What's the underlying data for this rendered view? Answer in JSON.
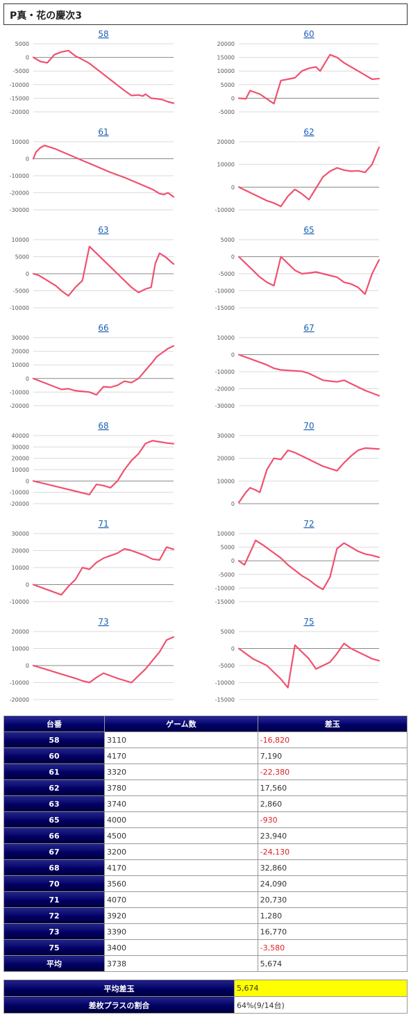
{
  "title": "P真・花の慶次3",
  "line_color": "#f0506e",
  "chart_data": [
    {
      "type": "line",
      "title": "58",
      "yticks": [
        5000,
        0,
        -5000,
        -10000,
        -15000,
        -20000
      ],
      "ylim": [
        -20000,
        5000
      ],
      "x": [
        0,
        5,
        10,
        15,
        20,
        25,
        30,
        35,
        40,
        45,
        50,
        55,
        60,
        65,
        70,
        75,
        78,
        80,
        84,
        88,
        92,
        96,
        100
      ],
      "y": [
        0,
        -1500,
        -2000,
        1000,
        2000,
        2500,
        500,
        -800,
        -2200,
        -4200,
        -6200,
        -8200,
        -10200,
        -12200,
        -14000,
        -13800,
        -14200,
        -13500,
        -15000,
        -15200,
        -15500,
        -16300,
        -16820
      ]
    },
    {
      "type": "line",
      "title": "60",
      "yticks": [
        20000,
        15000,
        10000,
        5000,
        0,
        -5000
      ],
      "ylim": [
        -5000,
        20000
      ],
      "x": [
        0,
        5,
        8,
        15,
        25,
        30,
        35,
        40,
        45,
        50,
        55,
        58,
        65,
        70,
        75,
        80,
        85,
        90,
        95,
        100
      ],
      "y": [
        0,
        -200,
        2800,
        1500,
        -2000,
        6500,
        7000,
        7500,
        10000,
        11000,
        11500,
        10000,
        16000,
        15000,
        13000,
        11500,
        10000,
        8500,
        7000,
        7190
      ]
    },
    {
      "type": "line",
      "title": "61",
      "yticks": [
        10000,
        0,
        -10000,
        -20000,
        -30000
      ],
      "ylim": [
        -30000,
        10000
      ],
      "x": [
        0,
        2,
        5,
        8,
        15,
        25,
        35,
        45,
        55,
        65,
        75,
        85,
        90,
        93,
        96,
        100
      ],
      "y": [
        0,
        4000,
        6500,
        7800,
        6000,
        2500,
        -1000,
        -4500,
        -8000,
        -11000,
        -14500,
        -18000,
        -20500,
        -21000,
        -20000,
        -22380
      ]
    },
    {
      "type": "line",
      "title": "62",
      "yticks": [
        20000,
        10000,
        0,
        -10000
      ],
      "ylim": [
        -10000,
        20000
      ],
      "x": [
        0,
        5,
        10,
        15,
        20,
        25,
        30,
        35,
        40,
        45,
        50,
        55,
        60,
        65,
        70,
        75,
        80,
        85,
        90,
        95,
        100
      ],
      "y": [
        0,
        -1500,
        -3000,
        -4500,
        -6000,
        -7000,
        -8500,
        -4000,
        -1000,
        -3000,
        -5500,
        -500,
        4500,
        7000,
        8500,
        7500,
        7000,
        7200,
        6500,
        10000,
        17560
      ]
    },
    {
      "type": "line",
      "title": "63",
      "yticks": [
        10000,
        5000,
        0,
        -5000,
        -10000
      ],
      "ylim": [
        -10000,
        10000
      ],
      "x": [
        0,
        4,
        8,
        12,
        16,
        20,
        25,
        30,
        35,
        40,
        45,
        50,
        55,
        60,
        65,
        70,
        75,
        80,
        84,
        87,
        90,
        94,
        100
      ],
      "y": [
        0,
        -500,
        -1500,
        -2500,
        -3500,
        -5000,
        -6500,
        -4000,
        -2000,
        8000,
        6000,
        4000,
        2000,
        0,
        -2000,
        -4000,
        -5500,
        -4500,
        -4000,
        3000,
        6000,
        5000,
        2860
      ]
    },
    {
      "type": "line",
      "title": "65",
      "yticks": [
        5000,
        0,
        -5000,
        -10000,
        -15000
      ],
      "ylim": [
        -15000,
        5000
      ],
      "x": [
        0,
        5,
        10,
        15,
        20,
        25,
        30,
        35,
        40,
        45,
        50,
        55,
        60,
        65,
        70,
        75,
        80,
        85,
        90,
        95,
        100
      ],
      "y": [
        0,
        -2000,
        -4000,
        -6000,
        -7500,
        -8500,
        0,
        -2000,
        -4000,
        -5000,
        -4800,
        -4500,
        -5000,
        -5500,
        -6000,
        -7500,
        -8000,
        -9000,
        -11000,
        -5000,
        -930
      ]
    },
    {
      "type": "line",
      "title": "66",
      "yticks": [
        30000,
        20000,
        10000,
        0,
        -10000,
        -20000
      ],
      "ylim": [
        -20000,
        30000
      ],
      "x": [
        0,
        10,
        20,
        25,
        30,
        35,
        40,
        45,
        50,
        55,
        60,
        65,
        70,
        75,
        80,
        85,
        88,
        92,
        96,
        100
      ],
      "y": [
        0,
        -4000,
        -8000,
        -7500,
        -9000,
        -9500,
        -10000,
        -12000,
        -6000,
        -6500,
        -5000,
        -2000,
        -3000,
        0,
        6000,
        12000,
        16000,
        19000,
        22000,
        23940
      ]
    },
    {
      "type": "line",
      "title": "67",
      "yticks": [
        10000,
        0,
        -10000,
        -20000,
        -30000
      ],
      "ylim": [
        -30000,
        10000
      ],
      "x": [
        0,
        10,
        20,
        25,
        30,
        40,
        45,
        50,
        60,
        65,
        70,
        75,
        80,
        90,
        100
      ],
      "y": [
        0,
        -3000,
        -6000,
        -8000,
        -9000,
        -9500,
        -9800,
        -11000,
        -15000,
        -15500,
        -16000,
        -15000,
        -17000,
        -21000,
        -24130
      ]
    },
    {
      "type": "line",
      "title": "68",
      "yticks": [
        40000,
        30000,
        20000,
        10000,
        0,
        -10000,
        -20000
      ],
      "ylim": [
        -20000,
        40000
      ],
      "x": [
        0,
        10,
        20,
        30,
        40,
        45,
        50,
        55,
        60,
        65,
        70,
        75,
        80,
        85,
        90,
        95,
        100
      ],
      "y": [
        0,
        -3000,
        -6000,
        -9000,
        -12000,
        -3000,
        -4000,
        -6000,
        0,
        10000,
        18000,
        24000,
        33000,
        35500,
        34500,
        33500,
        32860
      ]
    },
    {
      "type": "line",
      "title": "70",
      "yticks": [
        30000,
        20000,
        10000,
        0
      ],
      "ylim": [
        0,
        30000
      ],
      "x": [
        0,
        5,
        8,
        12,
        15,
        20,
        25,
        30,
        35,
        40,
        45,
        50,
        55,
        60,
        65,
        70,
        75,
        80,
        85,
        90,
        95,
        100
      ],
      "y": [
        500,
        5000,
        7000,
        6000,
        5000,
        15000,
        20000,
        19500,
        23500,
        22500,
        21000,
        19500,
        18000,
        16500,
        15500,
        14500,
        18000,
        21000,
        23500,
        24500,
        24300,
        24090
      ]
    },
    {
      "type": "line",
      "title": "71",
      "yticks": [
        30000,
        20000,
        10000,
        0,
        -10000
      ],
      "ylim": [
        -10000,
        30000
      ],
      "x": [
        0,
        10,
        20,
        25,
        30,
        35,
        40,
        45,
        50,
        55,
        60,
        65,
        70,
        75,
        80,
        85,
        90,
        95,
        100
      ],
      "y": [
        0,
        -3000,
        -6000,
        -1000,
        3000,
        10000,
        9000,
        13000,
        15500,
        17000,
        18500,
        21000,
        20000,
        18500,
        17000,
        15000,
        14500,
        22000,
        20730
      ]
    },
    {
      "type": "line",
      "title": "72",
      "yticks": [
        10000,
        5000,
        0,
        -5000,
        -10000,
        -15000
      ],
      "ylim": [
        -15000,
        10000
      ],
      "x": [
        0,
        4,
        8,
        12,
        18,
        22,
        26,
        30,
        35,
        40,
        45,
        50,
        55,
        60,
        65,
        70,
        75,
        80,
        85,
        90,
        95,
        100
      ],
      "y": [
        0,
        -1500,
        3000,
        7500,
        5500,
        4000,
        2500,
        1000,
        -1500,
        -3500,
        -5500,
        -7000,
        -9000,
        -10500,
        -6000,
        4500,
        6500,
        5000,
        3500,
        2500,
        2000,
        1280
      ]
    },
    {
      "type": "line",
      "title": "73",
      "yticks": [
        20000,
        10000,
        0,
        -10000,
        -20000
      ],
      "ylim": [
        -20000,
        20000
      ],
      "x": [
        0,
        10,
        20,
        30,
        35,
        40,
        45,
        50,
        60,
        70,
        75,
        80,
        85,
        90,
        95,
        100
      ],
      "y": [
        0,
        -2500,
        -5000,
        -7500,
        -9000,
        -10000,
        -7000,
        -4500,
        -7500,
        -10000,
        -6000,
        -2000,
        3000,
        8000,
        15000,
        16770
      ]
    },
    {
      "type": "line",
      "title": "75",
      "yticks": [
        5000,
        0,
        -5000,
        -10000,
        -15000
      ],
      "ylim": [
        -15000,
        5000
      ],
      "x": [
        0,
        10,
        20,
        30,
        35,
        40,
        45,
        50,
        55,
        60,
        65,
        70,
        75,
        80,
        85,
        90,
        95,
        100
      ],
      "y": [
        0,
        -3000,
        -5000,
        -9000,
        -11500,
        1000,
        -1000,
        -3000,
        -6000,
        -5000,
        -4000,
        -1500,
        1500,
        0,
        -1000,
        -2000,
        -3000,
        -3580
      ]
    }
  ],
  "table": {
    "headers": [
      "台番",
      "ゲーム数",
      "差玉"
    ],
    "rows": [
      {
        "num": "58",
        "games": "3110",
        "diff": "-16,820",
        "neg": true
      },
      {
        "num": "60",
        "games": "4170",
        "diff": "7,190",
        "neg": false
      },
      {
        "num": "61",
        "games": "3320",
        "diff": "-22,380",
        "neg": true
      },
      {
        "num": "62",
        "games": "3780",
        "diff": "17,560",
        "neg": false
      },
      {
        "num": "63",
        "games": "3740",
        "diff": "2,860",
        "neg": false
      },
      {
        "num": "65",
        "games": "4000",
        "diff": "-930",
        "neg": true
      },
      {
        "num": "66",
        "games": "4500",
        "diff": "23,940",
        "neg": false
      },
      {
        "num": "67",
        "games": "3200",
        "diff": "-24,130",
        "neg": true
      },
      {
        "num": "68",
        "games": "4170",
        "diff": "32,860",
        "neg": false
      },
      {
        "num": "70",
        "games": "3560",
        "diff": "24,090",
        "neg": false
      },
      {
        "num": "71",
        "games": "4070",
        "diff": "20,730",
        "neg": false
      },
      {
        "num": "72",
        "games": "3920",
        "diff": "1,280",
        "neg": false
      },
      {
        "num": "73",
        "games": "3390",
        "diff": "16,770",
        "neg": false
      },
      {
        "num": "75",
        "games": "3400",
        "diff": "-3,580",
        "neg": true
      }
    ],
    "average": {
      "label": "平均",
      "games": "3738",
      "diff": "5,674"
    }
  },
  "summary": {
    "avg_label": "平均差玉",
    "avg_value": "5,674",
    "plus_label": "差枚プラスの割合",
    "plus_value": "64%(9/14台)"
  }
}
